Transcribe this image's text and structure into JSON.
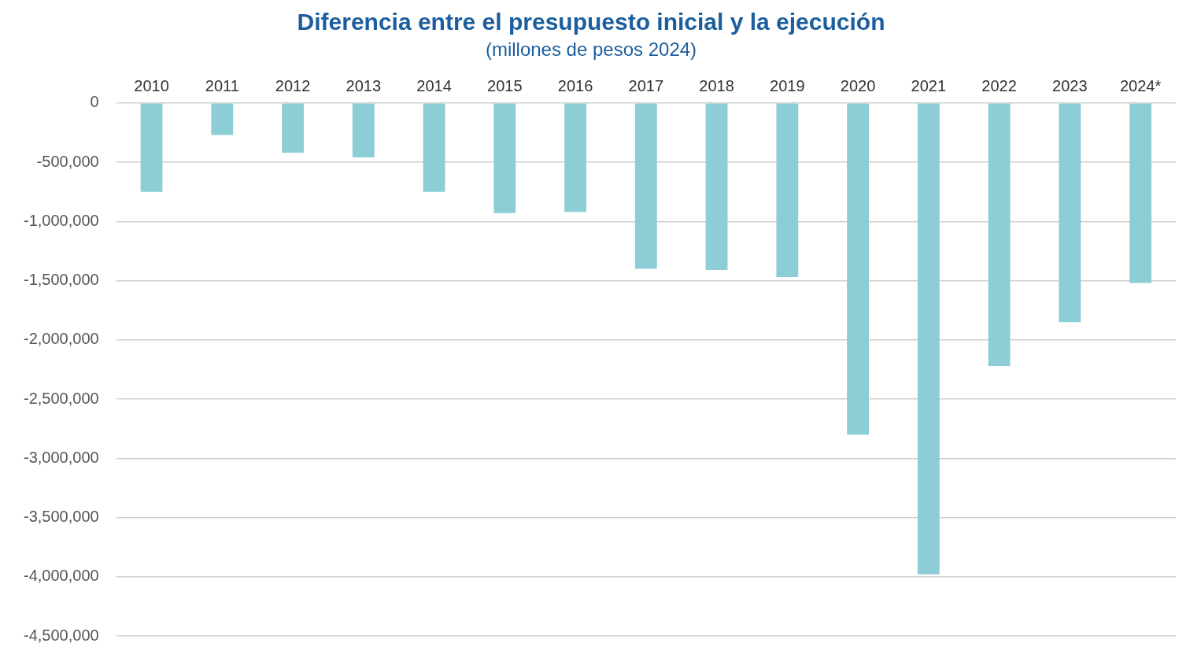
{
  "chart_data": {
    "type": "bar",
    "title": "Diferencia entre el presupuesto inicial y la ejecución",
    "subtitle": "(millones de pesos 2024)",
    "categories": [
      "2010",
      "2011",
      "2012",
      "2013",
      "2014",
      "2015",
      "2016",
      "2017",
      "2018",
      "2019",
      "2020",
      "2021",
      "2022",
      "2023",
      "2024*"
    ],
    "values": [
      -750000,
      -270000,
      -420000,
      -460000,
      -750000,
      -930000,
      -920000,
      -1400000,
      -1410000,
      -1470000,
      -2800000,
      -3980000,
      -2220000,
      -1850000,
      -1520000
    ],
    "color": "#8ccdd6",
    "ylim": [
      -4500000,
      0
    ],
    "yticks": [
      {
        "value": 0,
        "label": "0"
      },
      {
        "value": -500000,
        "label": "-500,000"
      },
      {
        "value": -1000000,
        "label": "-1,000,000"
      },
      {
        "value": -1500000,
        "label": "-1,500,000"
      },
      {
        "value": -2000000,
        "label": "-2,000,000"
      },
      {
        "value": -2500000,
        "label": "-2,500,000"
      },
      {
        "value": -3000000,
        "label": "-3,000,000"
      },
      {
        "value": -3500000,
        "label": "-3,500,000"
      },
      {
        "value": -4000000,
        "label": "-4,000,000"
      },
      {
        "value": -4500000,
        "label": "-4,500,000"
      }
    ],
    "grid": "y",
    "legend": false
  }
}
